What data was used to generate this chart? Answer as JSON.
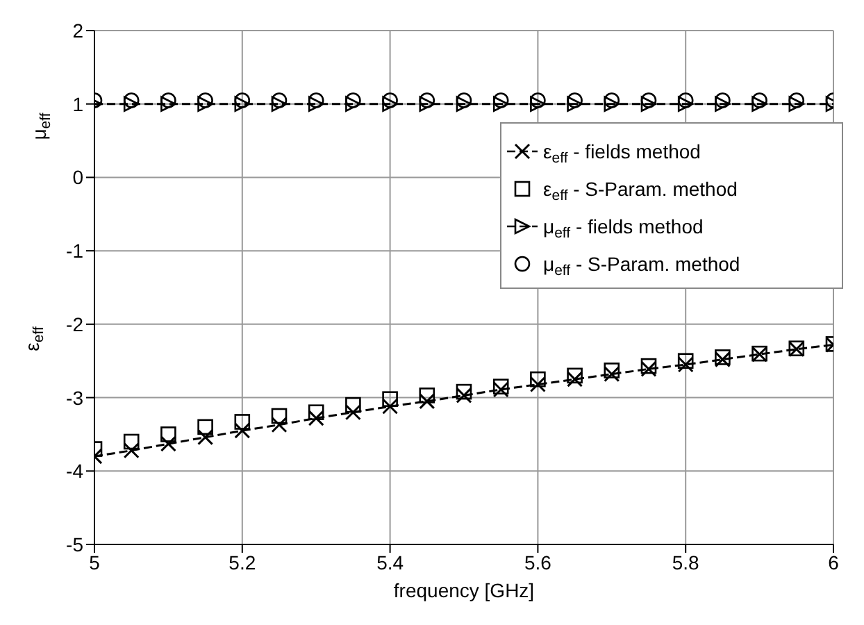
{
  "chart_data": {
    "type": "line",
    "xlabel": "frequency [GHz]",
    "ylabel": "ε$_{eff}$",
    "annotations": [
      "μ$_{eff}$"
    ],
    "xlim": [
      5,
      6
    ],
    "xticks": [
      5,
      5.2,
      5.4,
      5.6,
      5.8,
      6
    ],
    "ylim": [
      -5,
      2
    ],
    "yticks": [
      -5,
      -4,
      -3,
      -2,
      -1,
      0,
      1,
      2
    ],
    "grid": true,
    "legend": "right",
    "line_style": "dashed",
    "x": [
      5,
      5.05,
      5.1,
      5.15,
      5.2,
      5.25,
      5.3,
      5.35,
      5.4,
      5.45,
      5.5,
      5.55,
      5.6,
      5.65,
      5.7,
      5.75,
      5.8,
      5.85,
      5.9,
      5.95,
      6
    ],
    "series": [
      {
        "name": "ε$_{eff}$ - fields method",
        "marker": "cross",
        "color": "#000000",
        "values": [
          -3.8,
          -3.72,
          -3.63,
          -3.54,
          -3.45,
          -3.37,
          -3.28,
          -3.2,
          -3.12,
          -3.05,
          -2.97,
          -2.89,
          -2.82,
          -2.75,
          -2.68,
          -2.61,
          -2.55,
          -2.48,
          -2.41,
          -2.34,
          -2.28
        ]
      },
      {
        "name": "ε$_{eff}$ - S-Param. method",
        "type": "scatter",
        "marker": "square",
        "color": "#000000",
        "values": [
          -3.7,
          -3.6,
          -3.5,
          -3.4,
          -3.33,
          -3.25,
          -3.2,
          -3.1,
          -3.02,
          -2.97,
          -2.92,
          -2.85,
          -2.75,
          -2.7,
          -2.63,
          -2.57,
          -2.5,
          -2.45,
          -2.4,
          -2.33,
          -2.27
        ]
      },
      {
        "name": "μ$_{eff}$ - fields method",
        "marker": "triangle",
        "color": "#000000",
        "values": [
          1,
          1,
          1,
          1,
          1,
          1,
          1,
          1,
          1,
          1,
          1,
          1,
          1,
          1,
          1,
          1,
          1,
          1,
          1,
          1,
          1
        ]
      },
      {
        "name": "μ$_{eff}$ - S-Param. method",
        "type": "scatter",
        "marker": "circle",
        "color": "#000000",
        "values": [
          1.05,
          1.05,
          1.05,
          1.05,
          1.05,
          1.05,
          1.05,
          1.05,
          1.05,
          1.05,
          1.05,
          1.05,
          1.05,
          1.05,
          1.05,
          1.05,
          1.05,
          1.05,
          1.05,
          1.05,
          1.05
        ]
      }
    ]
  }
}
